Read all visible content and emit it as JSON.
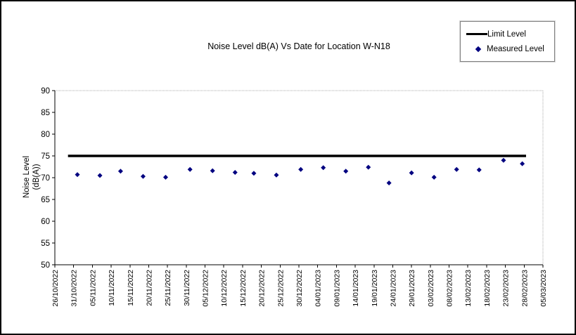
{
  "chart_data": {
    "type": "scatter",
    "title": "Noise Level dB(A) Vs Date for Location W-N18",
    "ylabel_lines": [
      "Noise Level",
      "(dB(A))"
    ],
    "xlabel": "",
    "ylim": [
      50,
      90
    ],
    "y_ticks": [
      90,
      85,
      80,
      75,
      70,
      65,
      60,
      55,
      50
    ],
    "x_day_span": 130,
    "x_tick_step_days": 5,
    "x_tick_labels": [
      "26/10/2022",
      "31/10/2022",
      "05/11/2022",
      "10/11/2022",
      "15/11/2022",
      "20/11/2022",
      "25/11/2022",
      "30/11/2022",
      "05/12/2022",
      "10/12/2022",
      "15/12/2022",
      "20/12/2022",
      "25/12/2022",
      "30/12/2022",
      "04/01/2023",
      "09/01/2023",
      "14/01/2023",
      "19/01/2023",
      "24/01/2023",
      "29/01/2023",
      "03/02/2023",
      "08/02/2023",
      "13/02/2023",
      "18/02/2023",
      "23/02/2023",
      "28/02/2023",
      "05/03/2023"
    ],
    "grid": "off",
    "legend": {
      "position": "top-right",
      "items": [
        {
          "label": "Limit Level",
          "marker": "line",
          "color": "#000000"
        },
        {
          "label": "Measured Level",
          "marker": "diamond",
          "color": "#000080"
        }
      ]
    },
    "series": [
      {
        "name": "Limit Level",
        "type": "line",
        "color": "#000000",
        "points": [
          {
            "x_day": 3.5,
            "value": 75
          },
          {
            "x_day": 125.5,
            "value": 75
          }
        ]
      },
      {
        "name": "Measured Level",
        "type": "scatter-diamond",
        "color": "#000080",
        "points": [
          {
            "x_day": 6,
            "value": 70.7
          },
          {
            "x_day": 12,
            "value": 70.5
          },
          {
            "x_day": 17.5,
            "value": 71.5
          },
          {
            "x_day": 23.5,
            "value": 70.3
          },
          {
            "x_day": 29.5,
            "value": 70.1
          },
          {
            "x_day": 36,
            "value": 71.9
          },
          {
            "x_day": 42,
            "value": 71.6
          },
          {
            "x_day": 48,
            "value": 71.2
          },
          {
            "x_day": 53,
            "value": 71.0
          },
          {
            "x_day": 59,
            "value": 70.6
          },
          {
            "x_day": 65.5,
            "value": 71.9
          },
          {
            "x_day": 71.5,
            "value": 72.3
          },
          {
            "x_day": 77.5,
            "value": 71.5
          },
          {
            "x_day": 83.5,
            "value": 72.4
          },
          {
            "x_day": 89,
            "value": 68.8
          },
          {
            "x_day": 95,
            "value": 71.1
          },
          {
            "x_day": 101,
            "value": 70.1
          },
          {
            "x_day": 107,
            "value": 71.9
          },
          {
            "x_day": 113,
            "value": 71.8
          },
          {
            "x_day": 119.5,
            "value": 74.0
          },
          {
            "x_day": 124.5,
            "value": 73.2
          }
        ]
      }
    ],
    "colors": {
      "axis": "#000000",
      "plot_border_dotted": "#aaaaaa",
      "measured_point": "#000080",
      "limit_line": "#000000"
    }
  }
}
